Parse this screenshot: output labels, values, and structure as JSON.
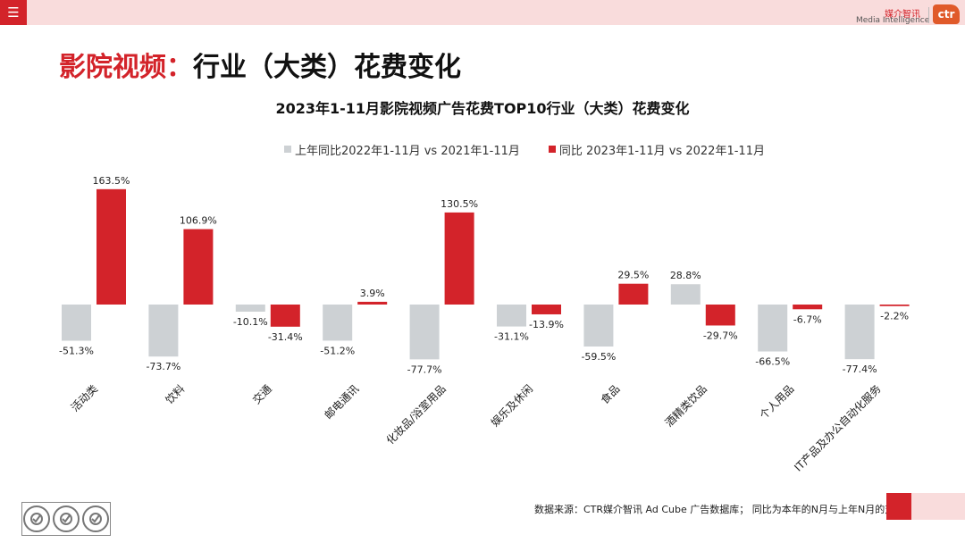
{
  "header": {
    "menu_icon": "hamburger-menu-icon",
    "logo_cn": "媒介智讯",
    "logo_en": "Media Intelligence",
    "logo_mark": "ctr"
  },
  "page": {
    "title_accent": "影院视频：",
    "title_main": "行业（大类）花费变化"
  },
  "colors": {
    "accent": "#d3232a",
    "prev_series": "#cdd1d4",
    "curr_series": "#d3232a"
  },
  "chart_data": {
    "type": "bar",
    "title": "2023年1-11月影院视频广告花费TOP10行业（大类）花费变化",
    "categories": [
      "活动类",
      "饮料",
      "交通",
      "邮电通讯",
      "化妆品/浴室用品",
      "娱乐及休闲",
      "食品",
      "酒精类饮品",
      "个人用品",
      "IT产品及办公自动化服务"
    ],
    "series": [
      {
        "name": "上年同比2022年1-11月 vs 2021年1-11月",
        "values": [
          -51.3,
          -73.7,
          -10.1,
          -51.2,
          -77.7,
          -31.1,
          -59.5,
          28.8,
          -66.5,
          -77.4
        ],
        "labels": [
          "-51.3%",
          "-73.7%",
          "-10.1%",
          "-51.2%",
          "-77.7%",
          "-31.1%",
          "-59.5%",
          "28.8%",
          "-66.5%",
          "-77.4%"
        ],
        "color": "#cdd1d4"
      },
      {
        "name": "同比 2023年1-11月 vs 2022年1-11月",
        "values": [
          163.5,
          106.9,
          -31.4,
          3.9,
          130.5,
          -13.9,
          29.5,
          -29.7,
          -6.7,
          -2.2
        ],
        "labels": [
          "163.5%",
          "106.9%",
          "-31.4%",
          "3.9%",
          "130.5%",
          "-13.9%",
          "29.5%",
          "-29.7%",
          "-6.7%",
          "-2.2%"
        ],
        "color": "#d3232a"
      }
    ],
    "ylim": [
      -80,
      170
    ],
    "grid": false,
    "legend": "top"
  },
  "footer": {
    "source": "数据来源：CTR媒介智讯 Ad Cube 广告数据库；  同比为本年的N月与上年N月的对比",
    "cert_label": "SGS"
  }
}
